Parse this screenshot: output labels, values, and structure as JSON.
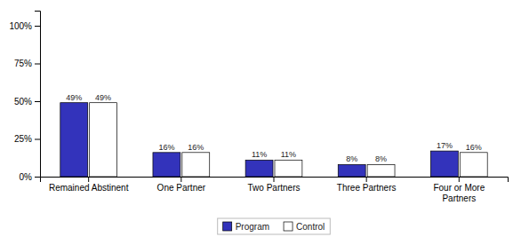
{
  "chart_data": {
    "type": "bar",
    "categories": [
      "Remained Abstinent",
      "One Partner",
      "Two Partners",
      "Three Partners",
      "Four or More\nPartners"
    ],
    "series": [
      {
        "name": "Program",
        "color": "#3333BB",
        "values": [
          49,
          16,
          11,
          8,
          17
        ],
        "value_labels": [
          "49%",
          "16%",
          "11%",
          "8%",
          "17%"
        ]
      },
      {
        "name": "Control",
        "color": "#FFFFFF",
        "values": [
          49,
          16,
          11,
          8,
          16
        ],
        "value_labels": [
          "49%",
          "16%",
          "11%",
          "8%",
          "16%"
        ]
      }
    ],
    "ylim": [
      0,
      110
    ],
    "yticks": [
      {
        "value": 0,
        "label": "0%"
      },
      {
        "value": 25,
        "label": "25%"
      },
      {
        "value": 50,
        "label": "50%"
      },
      {
        "value": 75,
        "label": "75%"
      },
      {
        "value": 100,
        "label": "100%"
      }
    ],
    "grid": false,
    "legend": "bottom",
    "data_labels": true
  }
}
